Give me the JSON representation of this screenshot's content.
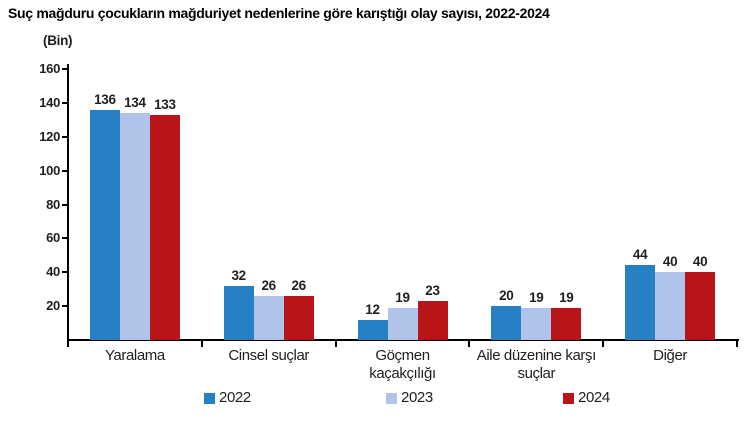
{
  "chart_data": {
    "type": "bar",
    "title": "Suç mağduru çocukların mağduriyet nedenlerine göre karıştığı olay sayısı, 2022-2024",
    "unit": "(Bin)",
    "categories": [
      "Yaralama",
      "Cinsel suçlar",
      "Göçmen\nkaçakçılığı",
      "Aile düzenine karşı\nsuçlar",
      "Diğer"
    ],
    "series": [
      {
        "name": "2022",
        "color": "#2880C4",
        "values": [
          136,
          32,
          12,
          20,
          44
        ]
      },
      {
        "name": "2023",
        "color": "#AFC4E8",
        "values": [
          134,
          26,
          19,
          19,
          40
        ]
      },
      {
        "name": "2024",
        "color": "#B81419",
        "values": [
          133,
          26,
          23,
          19,
          40
        ]
      }
    ],
    "ylabel": "",
    "xlabel": "",
    "ylim": [
      0,
      160
    ],
    "yticks": [
      20,
      40,
      60,
      80,
      100,
      120,
      140,
      160
    ],
    "grid": false,
    "legend_position": "bottom",
    "value_labels_shown": true,
    "colors": {
      "axis": "#000000",
      "text": "#1f1f1f"
    }
  }
}
